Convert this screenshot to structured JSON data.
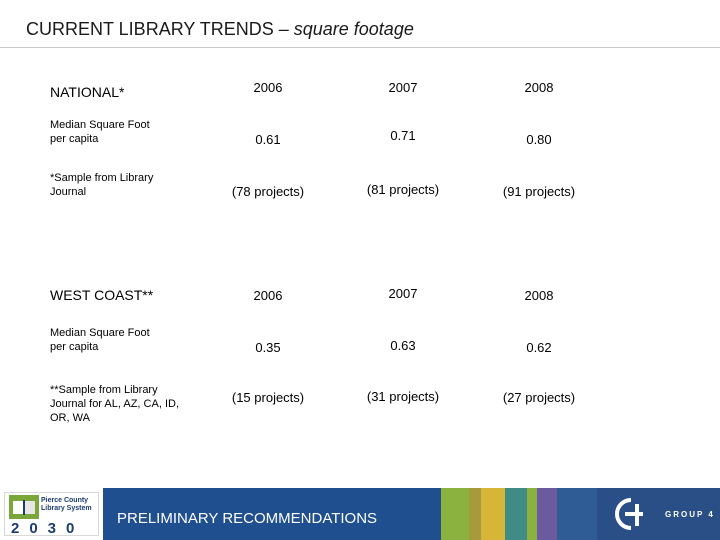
{
  "title": {
    "main": "CURRENT LIBRARY TRENDS – ",
    "sub": "square footage"
  },
  "national": {
    "heading": "NATIONAL*",
    "metric_label": "Median Square Foot per capita",
    "note": "*Sample from Library Journal",
    "years": [
      "2006",
      "2007",
      "2008"
    ],
    "values": [
      "0.61",
      "0.71",
      "0.80"
    ],
    "projects": [
      "(78 projects)",
      "(81 projects)",
      "(91 projects)"
    ]
  },
  "west_coast": {
    "heading": "WEST COAST**",
    "metric_label": "Median Square Foot per capita",
    "note": "**Sample from Library Journal for AL, AZ, CA, ID, OR, WA",
    "years": [
      "2006",
      "2007",
      "2008"
    ],
    "values": [
      "0.35",
      "0.63",
      "0.62"
    ],
    "projects": [
      "(15 projects)",
      "(31 projects)",
      "(27 projects)"
    ]
  },
  "footer": {
    "left_logo_text": "Pierce County Library System",
    "left_logo_year": "2030",
    "banner_text": "PRELIMINARY RECOMMENDATIONS",
    "right_logo_text": "GROUP 4"
  },
  "colors": {
    "banner": "#1f4f8f",
    "stripe_green": "#8bb23f",
    "stripe_olive": "#a59a3c",
    "stripe_yellow": "#d7b637",
    "stripe_teal": "#3f8c86",
    "stripe_purple": "#6c5a9e",
    "stripe_blue": "#2a4e86"
  }
}
